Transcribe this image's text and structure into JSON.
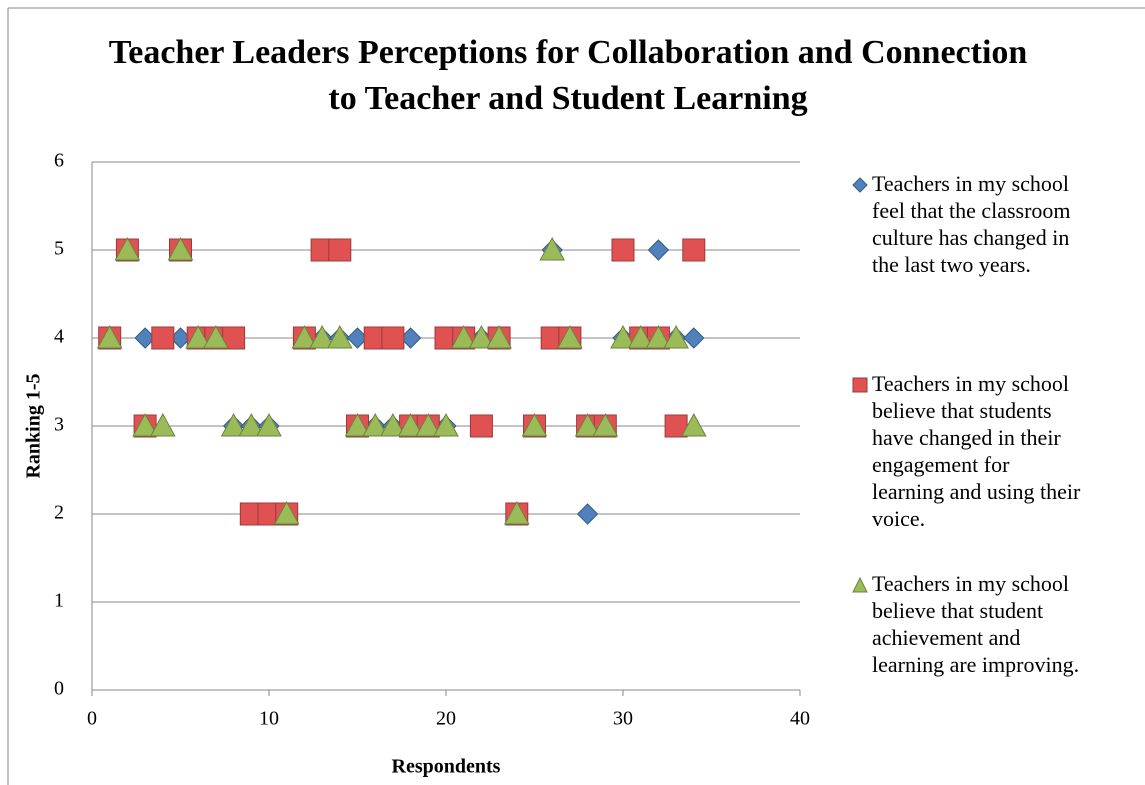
{
  "chart_data": {
    "type": "scatter",
    "title": "Teacher Leaders Perceptions for Collaboration and Connection to Teacher and Student Learning",
    "x_label": "Respondents",
    "y_label": "Ranking 1-5",
    "xlim": [
      0,
      40
    ],
    "xticks": [
      0,
      10,
      20,
      30,
      40
    ],
    "ylim": [
      0,
      6
    ],
    "yticks": [
      0,
      1,
      2,
      3,
      4,
      5,
      6
    ],
    "grid": true,
    "legend": "right",
    "x": [
      1,
      2,
      3,
      4,
      5,
      6,
      7,
      8,
      9,
      10,
      11,
      12,
      13,
      14,
      15,
      16,
      17,
      18,
      19,
      20,
      21,
      22,
      23,
      24,
      25,
      26,
      27,
      28,
      29,
      30,
      31,
      32,
      33,
      34
    ],
    "series": [
      {
        "name": "Teachers in my school feel that the classroom culture has changed in the last two years.",
        "color": "#4f81bd",
        "marker": "diamond",
        "values": [
          4,
          5,
          4,
          4,
          4,
          4,
          4,
          3,
          3,
          3,
          2,
          4,
          4,
          4,
          4,
          3,
          3,
          4,
          3,
          3,
          4,
          4,
          4,
          2,
          3,
          5,
          4,
          2,
          3,
          4,
          4,
          5,
          4,
          4
        ]
      },
      {
        "name": "Teachers in my school believe that students have changed in their engagement for learning and using their voice.",
        "color": "#e05252",
        "marker": "square",
        "values": [
          4,
          5,
          3,
          4,
          5,
          4,
          4,
          4,
          2,
          2,
          2,
          4,
          5,
          5,
          3,
          4,
          4,
          3,
          3,
          4,
          4,
          3,
          4,
          2,
          3,
          4,
          4,
          3,
          3,
          5,
          4,
          4,
          3,
          5
        ]
      },
      {
        "name": "Teachers in my school believe that student achievement and learning are improving.",
        "color": "#9bbb59",
        "marker": "triangle",
        "values": [
          4,
          5,
          3,
          3,
          5,
          4,
          4,
          3,
          3,
          3,
          2,
          4,
          4,
          4,
          3,
          3,
          3,
          3,
          3,
          3,
          4,
          4,
          4,
          2,
          3,
          5,
          4,
          3,
          3,
          4,
          4,
          4,
          4,
          3
        ]
      }
    ]
  }
}
